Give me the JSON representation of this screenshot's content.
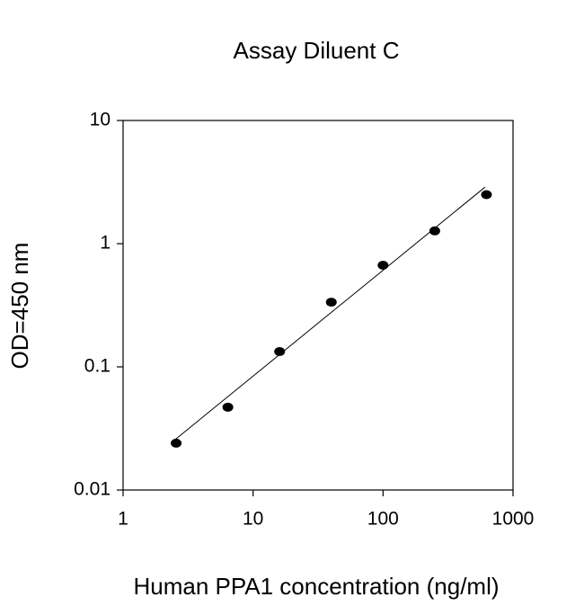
{
  "chart_data": {
    "type": "scatter",
    "title": "Assay Diluent C",
    "x_label": "Human PPA1 concentration (ng/ml)",
    "y_label": "OD=450 nm",
    "series": [
      {
        "color": "#000000",
        "x": [
          2.56,
          6.4,
          16,
          40,
          100,
          250,
          625
        ],
        "values": [
          0.024,
          0.047,
          0.133,
          0.335,
          0.668,
          1.27,
          2.5
        ]
      }
    ],
    "trendline": {
      "color": "#000000",
      "x": [
        2.44,
        610
      ],
      "values": [
        0.025,
        2.88
      ]
    },
    "xscale": "log",
    "yscale": "log",
    "xlim": [
      1,
      1000
    ],
    "ylim": [
      0.01,
      10
    ],
    "xticks": [
      1,
      10,
      100,
      1000
    ],
    "yticks": [
      0.01,
      0.1,
      1,
      10
    ]
  }
}
